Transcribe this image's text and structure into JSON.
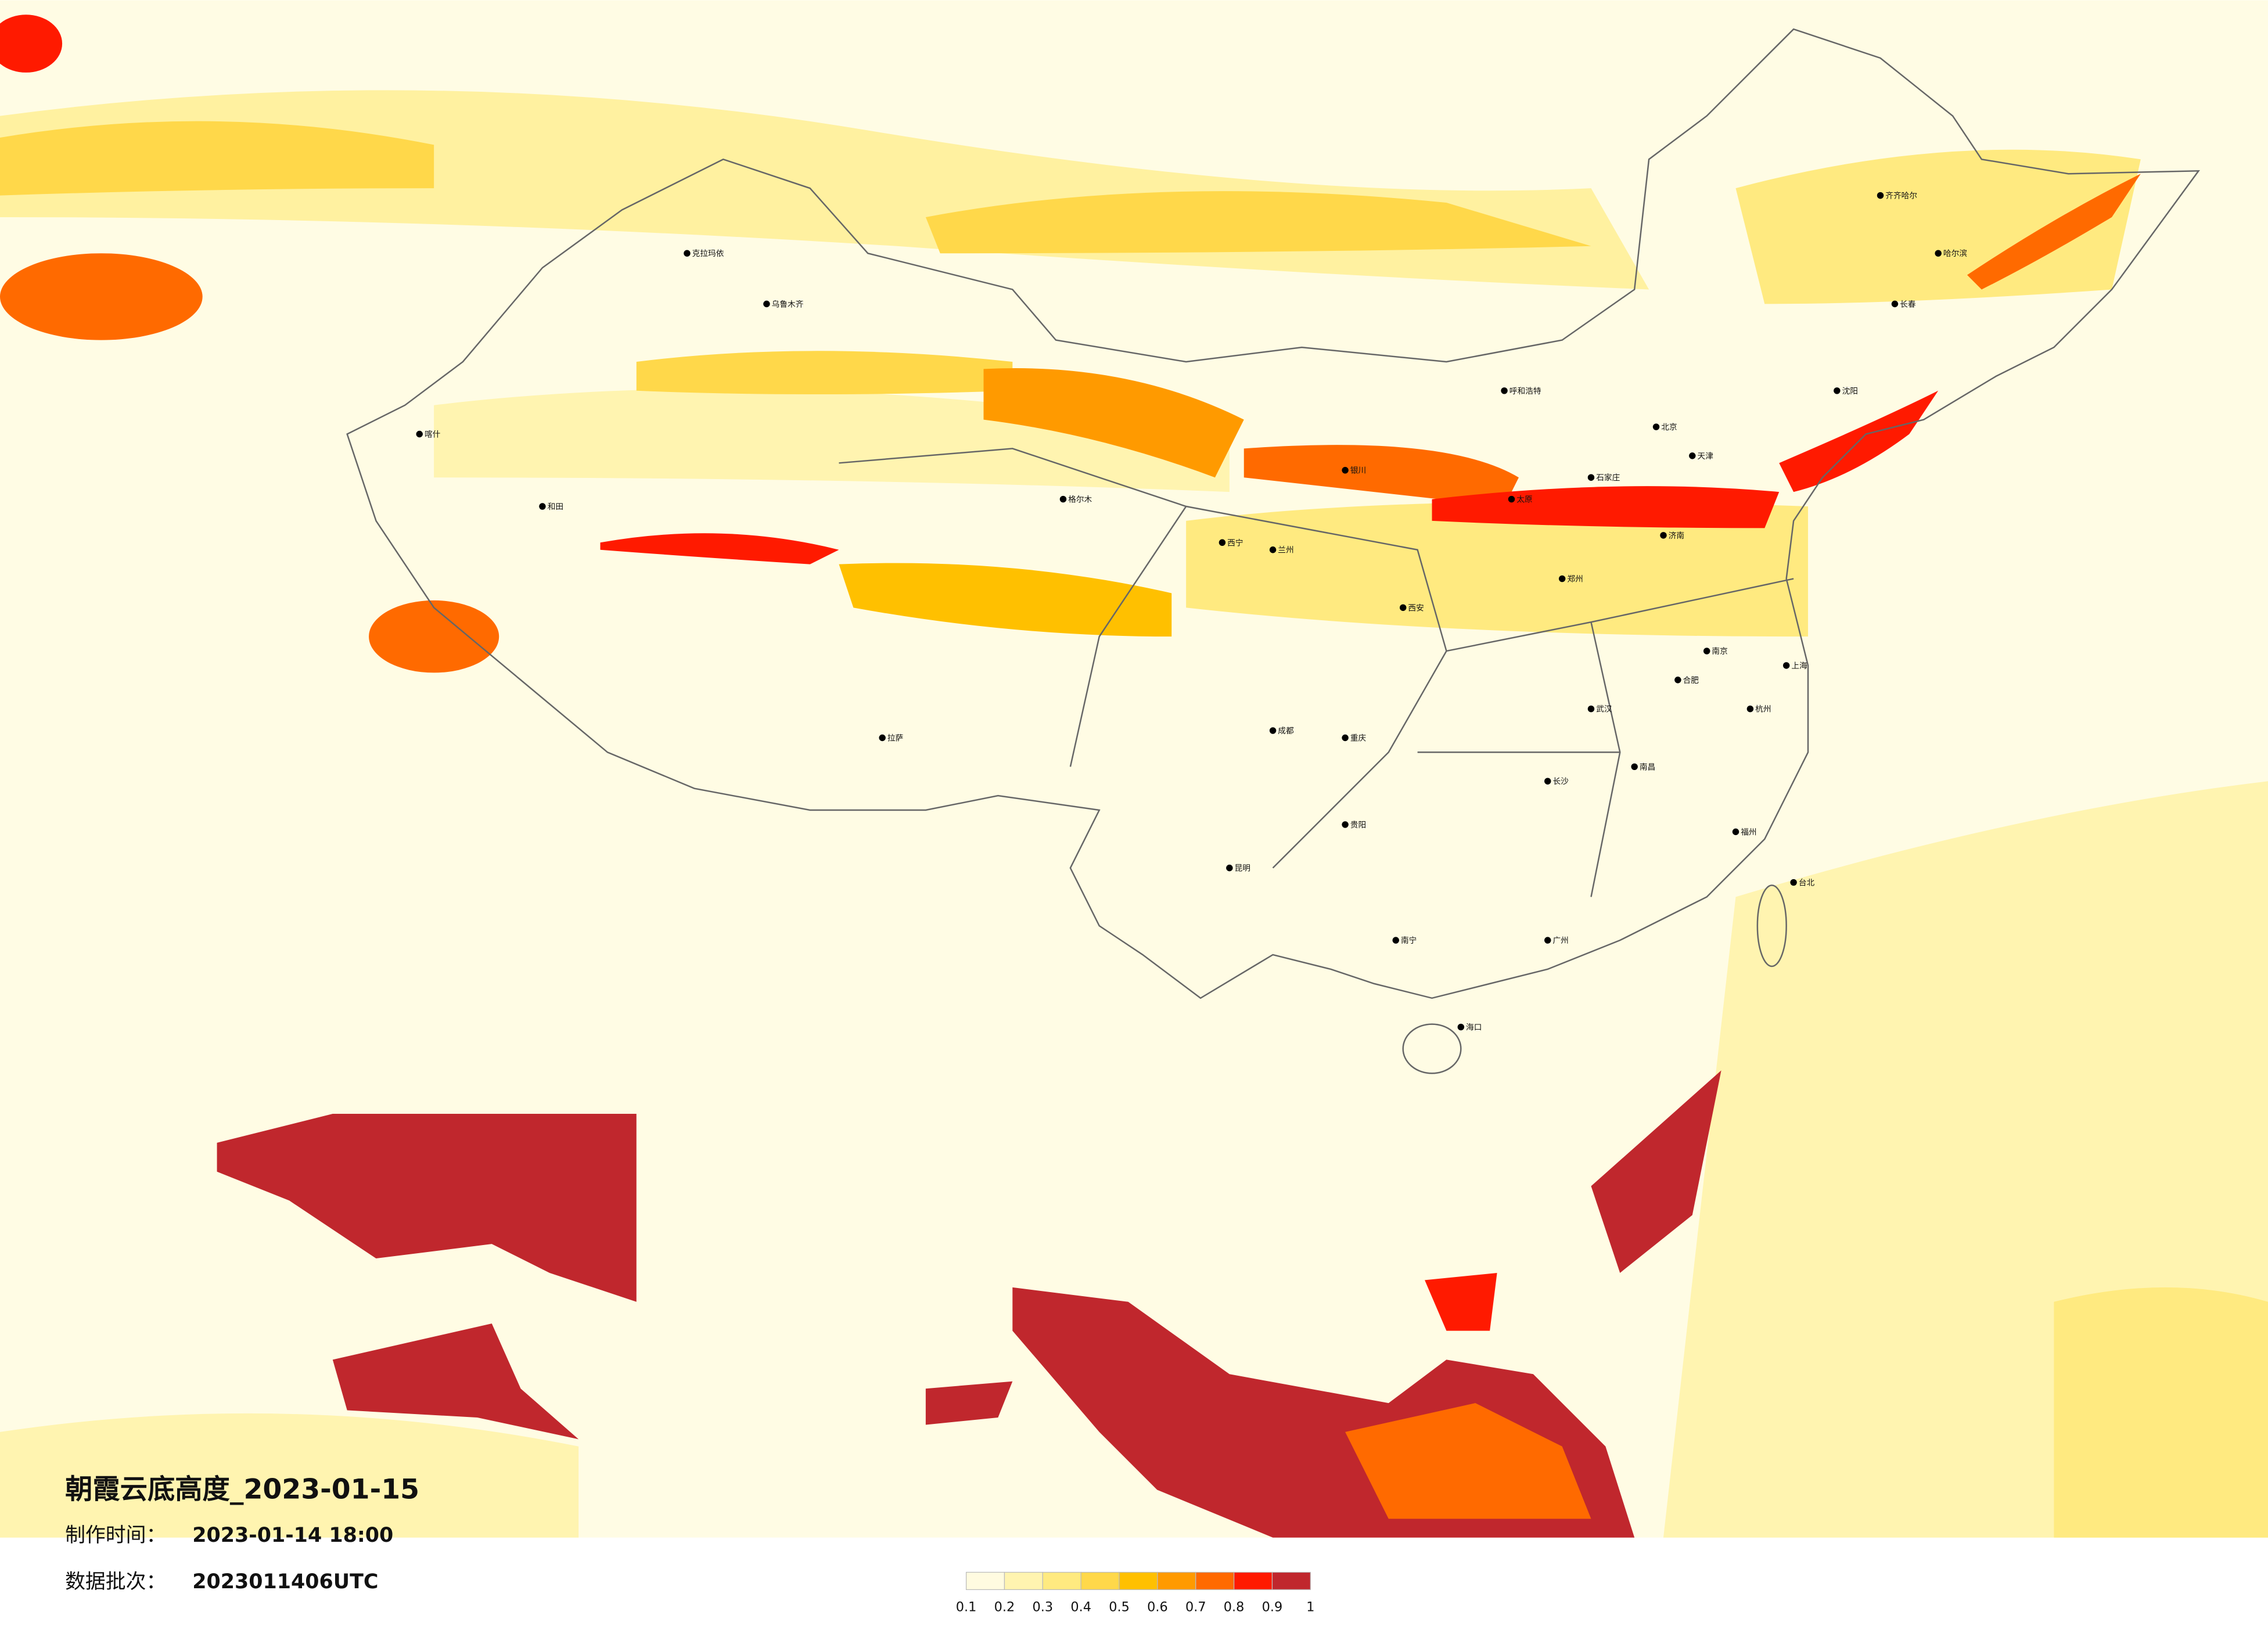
{
  "title": "朝霞云底高度_2023-01-15",
  "made_time": {
    "label": "制作时间：",
    "value": "2023-01-14 18:00"
  },
  "batch": {
    "label": "数据批次：",
    "value": "2023011406UTC"
  },
  "legend": {
    "colors": [
      "#fffbe0",
      "#fff4b0",
      "#ffea80",
      "#ffd84a",
      "#ffc000",
      "#ff9a00",
      "#ff6a00",
      "#ff1a00",
      "#c0272d"
    ],
    "labels": [
      "0.1",
      "0.2",
      "0.3",
      "0.4",
      "0.5",
      "0.6",
      "0.7",
      "0.8",
      "0.9",
      "1"
    ]
  },
  "cities": [
    "北京",
    "天津",
    "石家庄",
    "太原",
    "呼和浩特",
    "郑州",
    "西安",
    "兰州",
    "西宁",
    "银川",
    "成都",
    "重庆",
    "贵阳",
    "昆明",
    "南宁",
    "广州",
    "长沙",
    "武汉",
    "南昌",
    "杭州",
    "南京",
    "上海",
    "福州",
    "济南",
    "合肥",
    "沈阳",
    "长春",
    "哈尔滨",
    "乌鲁木齐",
    "拉萨",
    "海口",
    "台北",
    "齐齐哈尔",
    "克拉玛依",
    "喀什",
    "和田",
    "格尔木"
  ]
}
